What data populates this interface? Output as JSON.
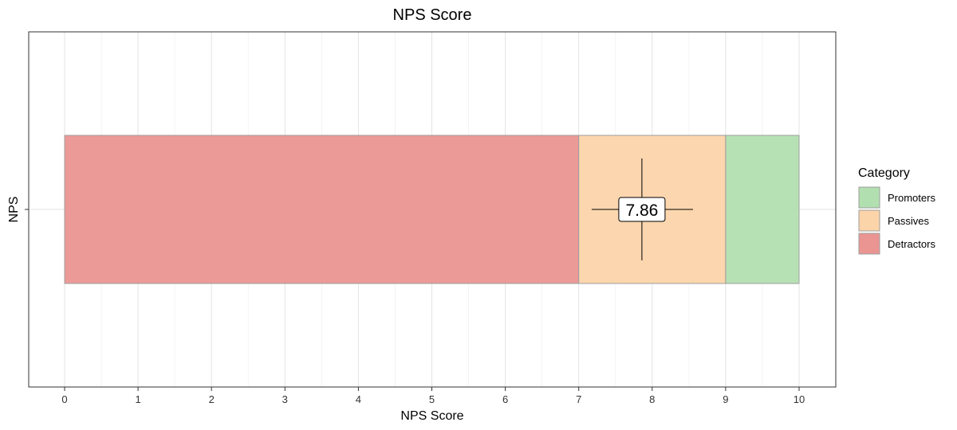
{
  "chart_data": {
    "type": "bar",
    "orientation": "horizontal",
    "stacked": true,
    "title": "NPS Score",
    "xlabel": "NPS Score",
    "ylabel": "NPS",
    "xlim": [
      0,
      10
    ],
    "xticks": [
      0,
      1,
      2,
      3,
      4,
      5,
      6,
      7,
      8,
      9,
      10
    ],
    "categories": [
      "NPS"
    ],
    "grid": true,
    "legend_title": "Category",
    "legend_position": "right",
    "series": [
      {
        "name": "Detractors",
        "start": 0,
        "end": 7,
        "color": "#EA9592"
      },
      {
        "name": "Passives",
        "start": 7,
        "end": 9,
        "color": "#FCD4AA"
      },
      {
        "name": "Promoters",
        "start": 9,
        "end": 10,
        "color": "#B2DFB0"
      }
    ],
    "legend_order": [
      "Promoters",
      "Passives",
      "Detractors"
    ],
    "annotation": {
      "label": "7.86",
      "value": 7.86,
      "crosshair": true
    }
  }
}
